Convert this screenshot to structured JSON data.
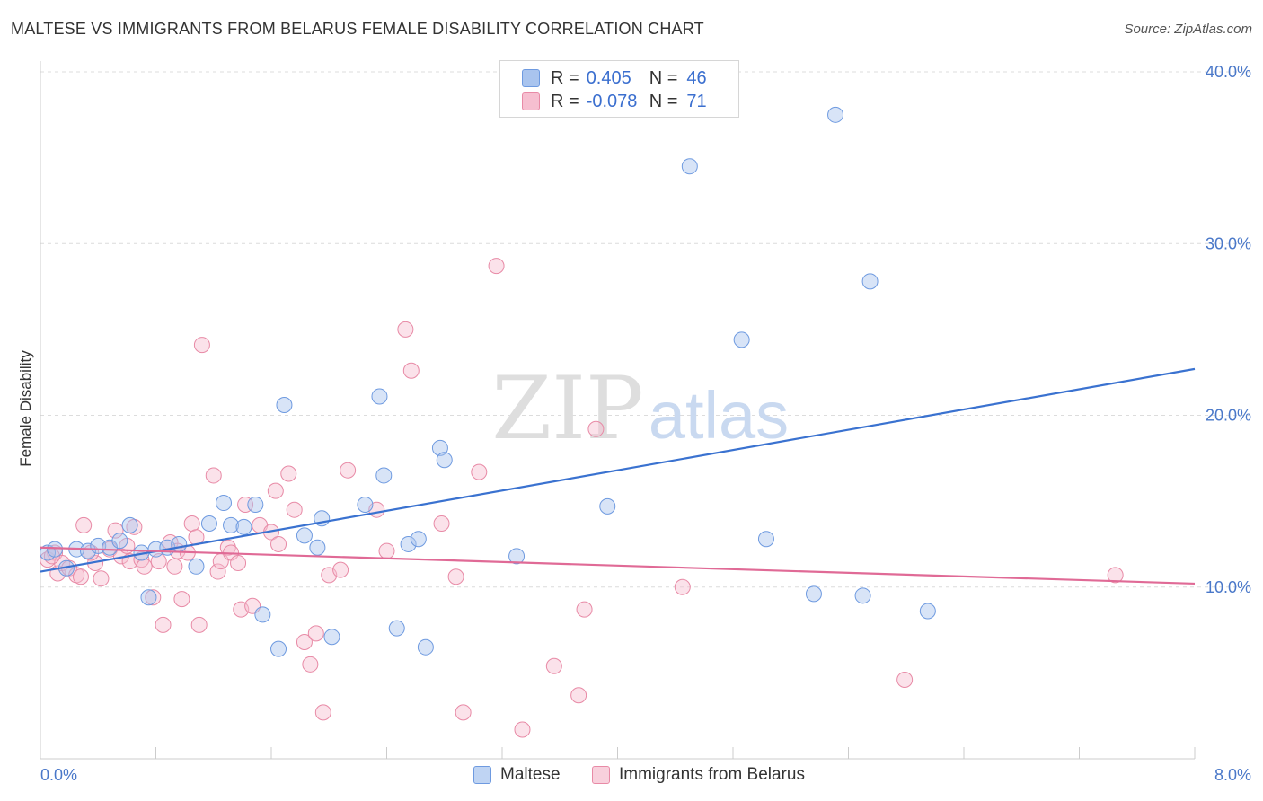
{
  "header": {
    "title": "MALTESE VS IMMIGRANTS FROM BELARUS FEMALE DISABILITY CORRELATION CHART",
    "source": "Source: ZipAtlas.com"
  },
  "legend_top": {
    "rows": [
      {
        "r_label": "R =",
        "r_value": "0.405",
        "n_label": "N =",
        "n_value": "46",
        "color": "#a9c4ee",
        "stroke": "#6e9ae0"
      },
      {
        "r_label": "R =",
        "r_value": "-0.078",
        "n_label": "N =",
        "n_value": "71",
        "color": "#f6bfd0",
        "stroke": "#e88aa6"
      }
    ]
  },
  "legend_bottom": {
    "items": [
      {
        "label": "Maltese",
        "color": "#a9c4ee",
        "stroke": "#6e9ae0"
      },
      {
        "label": "Immigrants from Belarus",
        "color": "#f6bfd0",
        "stroke": "#e88aa6"
      }
    ]
  },
  "watermark": {
    "part1": "ZIP",
    "part2": "atlas"
  },
  "chart_data": {
    "type": "scatter",
    "title": "MALTESE VS IMMIGRANTS FROM BELARUS FEMALE DISABILITY CORRELATION CHART",
    "xlabel": "",
    "ylabel": "Female Disability",
    "xlim": [
      0,
      8
    ],
    "ylim": [
      0,
      40
    ],
    "x_tick_labels": [
      "0.0%",
      "8.0%"
    ],
    "y_tick_labels": [
      "10.0%",
      "20.0%",
      "30.0%",
      "40.0%"
    ],
    "y_ticks": [
      10,
      20,
      30,
      40
    ],
    "grid": "horizontal dashed",
    "legend_position": "top-center",
    "colors": {
      "Maltese": "#3a72d0",
      "Immigrants from Belarus": "#e06a96"
    },
    "series": [
      {
        "name": "Maltese",
        "trendline": [
          [
            0,
            10.9
          ],
          [
            8,
            22.7
          ]
        ],
        "points": [
          [
            0.05,
            12.0
          ],
          [
            0.1,
            12.2
          ],
          [
            0.18,
            11.1
          ],
          [
            0.25,
            12.2
          ],
          [
            0.33,
            12.1
          ],
          [
            0.4,
            12.4
          ],
          [
            0.48,
            12.3
          ],
          [
            0.55,
            12.7
          ],
          [
            0.62,
            13.6
          ],
          [
            0.7,
            12.0
          ],
          [
            0.75,
            9.4
          ],
          [
            0.8,
            12.2
          ],
          [
            0.88,
            12.3
          ],
          [
            0.96,
            12.5
          ],
          [
            1.08,
            11.2
          ],
          [
            1.17,
            13.7
          ],
          [
            1.27,
            14.9
          ],
          [
            1.32,
            13.6
          ],
          [
            1.41,
            13.5
          ],
          [
            1.49,
            14.8
          ],
          [
            1.54,
            8.4
          ],
          [
            1.65,
            6.4
          ],
          [
            1.69,
            20.6
          ],
          [
            1.83,
            13.0
          ],
          [
            1.92,
            12.3
          ],
          [
            1.95,
            14.0
          ],
          [
            2.02,
            7.1
          ],
          [
            2.25,
            14.8
          ],
          [
            2.35,
            21.1
          ],
          [
            2.38,
            16.5
          ],
          [
            2.47,
            7.6
          ],
          [
            2.55,
            12.5
          ],
          [
            2.62,
            12.8
          ],
          [
            2.67,
            6.5
          ],
          [
            2.77,
            18.1
          ],
          [
            2.8,
            17.4
          ],
          [
            3.3,
            11.8
          ],
          [
            3.93,
            14.7
          ],
          [
            4.5,
            34.5
          ],
          [
            4.86,
            24.4
          ],
          [
            5.03,
            12.8
          ],
          [
            5.36,
            9.6
          ],
          [
            5.51,
            37.5
          ],
          [
            5.7,
            9.5
          ],
          [
            5.75,
            27.8
          ],
          [
            6.15,
            8.6
          ]
        ]
      },
      {
        "name": "Immigrants from Belarus",
        "trendline": [
          [
            0,
            12.3
          ],
          [
            8,
            10.2
          ]
        ],
        "points": [
          [
            0.05,
            11.6
          ],
          [
            0.1,
            12.0
          ],
          [
            0.12,
            10.8
          ],
          [
            0.15,
            11.4
          ],
          [
            0.2,
            11.1
          ],
          [
            0.25,
            10.7
          ],
          [
            0.28,
            10.6
          ],
          [
            0.3,
            13.6
          ],
          [
            0.38,
            11.4
          ],
          [
            0.42,
            10.5
          ],
          [
            0.48,
            12.2
          ],
          [
            0.52,
            13.3
          ],
          [
            0.56,
            11.8
          ],
          [
            0.6,
            12.4
          ],
          [
            0.62,
            11.5
          ],
          [
            0.65,
            13.5
          ],
          [
            0.7,
            11.6
          ],
          [
            0.72,
            11.2
          ],
          [
            0.78,
            9.4
          ],
          [
            0.82,
            11.5
          ],
          [
            0.85,
            7.8
          ],
          [
            0.9,
            12.6
          ],
          [
            0.93,
            11.2
          ],
          [
            0.95,
            12.1
          ],
          [
            0.98,
            9.3
          ],
          [
            1.02,
            12.0
          ],
          [
            1.05,
            13.7
          ],
          [
            1.08,
            12.9
          ],
          [
            1.1,
            7.8
          ],
          [
            1.12,
            24.1
          ],
          [
            1.2,
            16.5
          ],
          [
            1.23,
            10.9
          ],
          [
            1.25,
            11.5
          ],
          [
            1.3,
            12.3
          ],
          [
            1.32,
            12.0
          ],
          [
            1.37,
            11.4
          ],
          [
            1.39,
            8.7
          ],
          [
            1.42,
            14.8
          ],
          [
            1.47,
            8.9
          ],
          [
            1.52,
            13.6
          ],
          [
            1.6,
            13.2
          ],
          [
            1.63,
            15.6
          ],
          [
            1.65,
            12.5
          ],
          [
            1.72,
            16.6
          ],
          [
            1.76,
            14.5
          ],
          [
            1.83,
            6.8
          ],
          [
            1.87,
            5.5
          ],
          [
            1.91,
            7.3
          ],
          [
            1.96,
            2.7
          ],
          [
            2.0,
            10.7
          ],
          [
            2.08,
            11.0
          ],
          [
            2.13,
            16.8
          ],
          [
            2.33,
            14.5
          ],
          [
            2.4,
            12.1
          ],
          [
            2.53,
            25.0
          ],
          [
            2.57,
            22.6
          ],
          [
            2.78,
            13.7
          ],
          [
            2.88,
            10.6
          ],
          [
            2.93,
            2.7
          ],
          [
            3.04,
            16.7
          ],
          [
            3.16,
            28.7
          ],
          [
            3.34,
            1.7
          ],
          [
            3.56,
            5.4
          ],
          [
            3.73,
            3.7
          ],
          [
            3.77,
            8.7
          ],
          [
            3.85,
            19.2
          ],
          [
            4.45,
            10.0
          ],
          [
            5.99,
            4.6
          ],
          [
            7.45,
            10.7
          ],
          [
            0.08,
            11.8
          ],
          [
            0.35,
            12.0
          ]
        ]
      }
    ]
  }
}
